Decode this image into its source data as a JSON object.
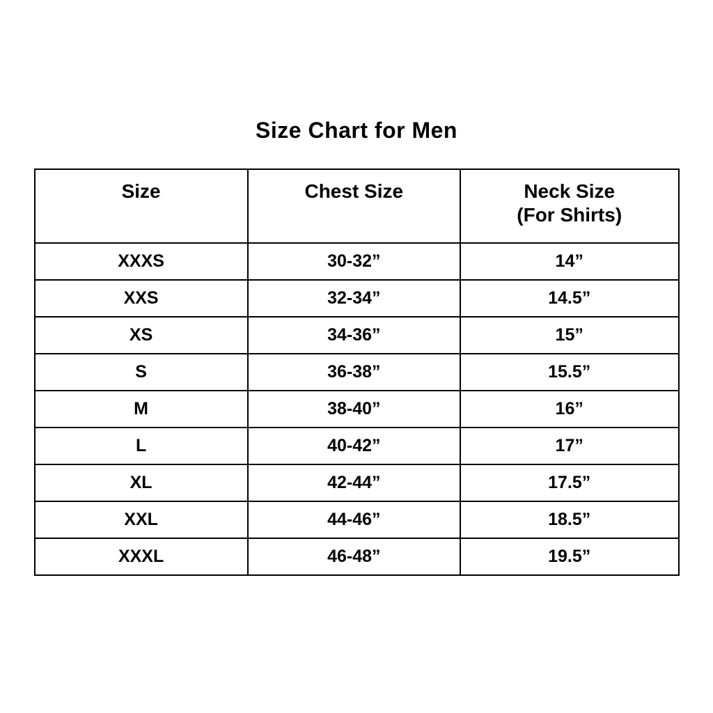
{
  "title": "Size Chart for Men",
  "colors": {
    "background": "#ffffff",
    "border": "#000000",
    "text": "#000000"
  },
  "chart_data": {
    "type": "table",
    "title": "Size Chart for Men",
    "columns": [
      "Size",
      "Chest Size",
      "Neck Size (For Shirts)"
    ],
    "header": {
      "size": "Size",
      "chest": "Chest Size",
      "neck_line1": "Neck Size",
      "neck_line2": "(For Shirts)"
    },
    "rows": [
      [
        "XXXS",
        "30-32”",
        "14”"
      ],
      [
        "XXS",
        "32-34”",
        "14.5”"
      ],
      [
        "XS",
        "34-36”",
        "15”"
      ],
      [
        "S",
        "36-38”",
        "15.5”"
      ],
      [
        "M",
        "38-40”",
        "16”"
      ],
      [
        "L",
        "40-42”",
        "17”"
      ],
      [
        "XL",
        "42-44”",
        "17.5”"
      ],
      [
        "XXL",
        "44-46”",
        "18.5”"
      ],
      [
        "XXXL",
        "46-48”",
        "19.5”"
      ]
    ]
  }
}
